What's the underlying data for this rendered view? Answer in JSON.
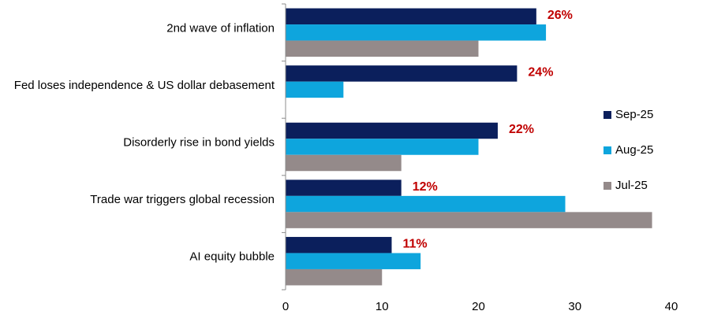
{
  "chart_data": {
    "type": "bar",
    "orientation": "horizontal",
    "categories": [
      "2nd wave of inflation",
      "Fed loses independence & US dollar debasement",
      "Disorderly rise in bond yields",
      "Trade war triggers global recession",
      "AI equity bubble"
    ],
    "series": [
      {
        "name": "Sep-25",
        "color": "#0b1f5c",
        "values": [
          26,
          24,
          22,
          12,
          11
        ]
      },
      {
        "name": "Aug-25",
        "color": "#0ea5dd",
        "values": [
          27,
          6,
          20,
          29,
          14
        ]
      },
      {
        "name": "Jul-25",
        "color": "#948a8a",
        "values": [
          20,
          null,
          12,
          38,
          10
        ]
      }
    ],
    "data_labels": {
      "series": "Sep-25",
      "text": [
        "26%",
        "24%",
        "22%",
        "12%",
        "11%"
      ],
      "color": "#c00000"
    },
    "xlim": [
      0,
      40
    ],
    "xticks": [
      0,
      10,
      20,
      30,
      40
    ],
    "xtick_labels": [
      "0",
      "10",
      "20",
      "30",
      "40"
    ],
    "xlabel": "",
    "ylabel": "",
    "title": "",
    "grid": false,
    "legend": {
      "position": "right",
      "entries": [
        "Sep-25",
        "Aug-25",
        "Jul-25"
      ]
    }
  }
}
